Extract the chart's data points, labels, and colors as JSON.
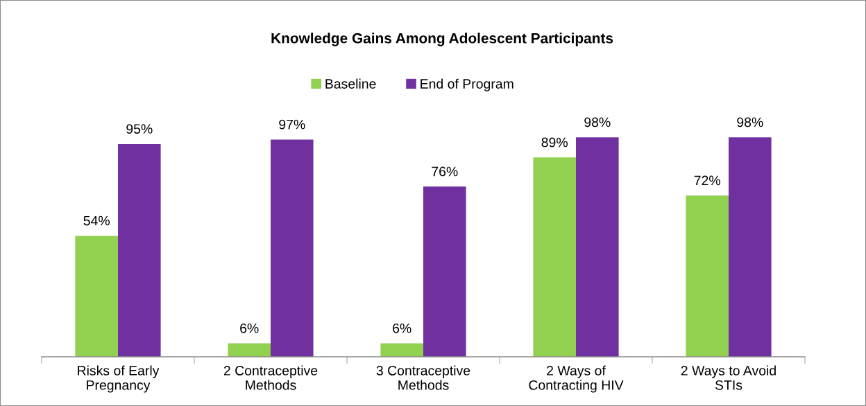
{
  "chart_data": {
    "type": "bar",
    "title": "Knowledge Gains Among Adolescent Participants",
    "categories": [
      "Risks of Early Pregnancy",
      "2 Contraceptive Methods",
      "3 Contraceptive Methods",
      "2 Ways of Contracting HIV",
      "2 Ways to Avoid STIs"
    ],
    "series": [
      {
        "name": "Baseline",
        "color": "#92d050",
        "values": [
          54,
          6,
          6,
          89,
          72
        ],
        "value_labels": [
          "54%",
          "6%",
          "6%",
          "89%",
          "72%"
        ]
      },
      {
        "name": "End of Program",
        "color": "#7030a0",
        "values": [
          95,
          97,
          76,
          98,
          98
        ],
        "value_labels": [
          "95%",
          "97%",
          "76%",
          "98%",
          "98%"
        ]
      }
    ],
    "legend": "top",
    "tick_labels": "x"
  }
}
